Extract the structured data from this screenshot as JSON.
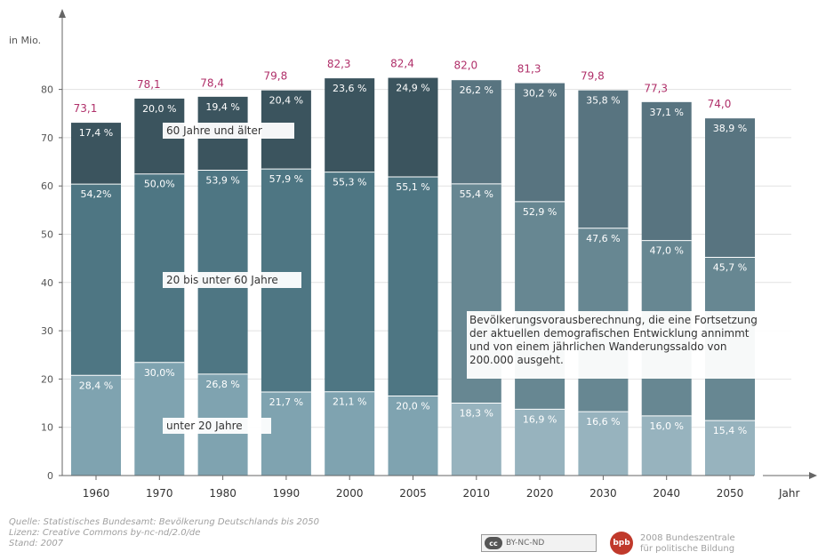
{
  "chart_data": {
    "type": "stacked-bar",
    "ylabel": "in Mio.",
    "xlabel": "Jahr",
    "ylim": [
      0,
      90
    ],
    "yticks": [
      0,
      10,
      20,
      30,
      40,
      50,
      60,
      70,
      80
    ],
    "categories": [
      "1960",
      "1970",
      "1980",
      "1990",
      "2000",
      "2005",
      "2010",
      "2020",
      "2030",
      "2040",
      "2050"
    ],
    "totals": [
      73.1,
      78.1,
      78.4,
      79.8,
      82.3,
      82.4,
      82.0,
      81.3,
      79.8,
      77.3,
      74.0
    ],
    "total_labels": [
      "73,1",
      "78,1",
      "78,4",
      "79,8",
      "82,3",
      "82,4",
      "82,0",
      "81,3",
      "79,8",
      "77,3",
      "74,0"
    ],
    "series": [
      {
        "name": "unter 20 Jahre",
        "percent": [
          28.4,
          30.0,
          26.8,
          21.7,
          21.1,
          20.0,
          18.3,
          16.9,
          16.6,
          16.0,
          15.4
        ],
        "labels": [
          "28,4 %",
          "30,0%",
          "26,8 %",
          "21,7 %",
          "21,1 %",
          "20,0 %",
          "18,3 %",
          "16,9 %",
          "16,6 %",
          "16,0 %",
          "15,4 %"
        ]
      },
      {
        "name": "20 bis unter 60 Jahre",
        "percent": [
          54.2,
          50.0,
          53.9,
          57.9,
          55.3,
          55.1,
          55.4,
          52.9,
          47.6,
          47.0,
          45.7
        ],
        "labels": [
          "54,2%",
          "50,0%",
          "53,9 %",
          "57,9 %",
          "55,3 %",
          "55,1 %",
          "55,4 %",
          "52,9 %",
          "47,6 %",
          "47,0 %",
          "45,7 %"
        ]
      },
      {
        "name": "60 Jahre und älter",
        "percent": [
          17.4,
          20.0,
          19.4,
          20.4,
          23.6,
          24.9,
          26.2,
          30.2,
          35.8,
          37.1,
          38.9
        ],
        "labels": [
          "17,4 %",
          "20,0 %",
          "19,4 %",
          "20,4 %",
          "23,6 %",
          "24,9 %",
          "26,2 %",
          "30,2 %",
          "35,8 %",
          "37,1 %",
          "38,9 %"
        ]
      }
    ],
    "colors": {
      "historic": [
        "#7fa3b0",
        "#4e7683",
        "#3b545e"
      ],
      "projection": [
        "#97b3be",
        "#678792",
        "#587480"
      ],
      "total_label": "#b0306a",
      "axis": "#666666",
      "grid": "#e2e2e2"
    },
    "projection_start_index": 6,
    "annotation": [
      "Bevölkerungsvorausberechnung, die eine Fortsetzung",
      "der aktuellen demografischen Entwicklung annimmt",
      "und von einem jährlichen Wanderungssaldo von",
      "200.000 ausgeht."
    ],
    "grid": true
  },
  "footer": {
    "source": "Quelle: Statistisches Bundesamt: Bevölkerung Deutschlands bis 2050",
    "license": "Lizenz: Creative Commons by-nc-nd/2.0/de",
    "stand": "Stand: 2007",
    "cc_badge": "cc",
    "cc_text": "BY-NC-ND",
    "bpb_logo": "bpb",
    "publisher_line1": "2008 Bundeszentrale",
    "publisher_line2": "für politische Bildung"
  }
}
